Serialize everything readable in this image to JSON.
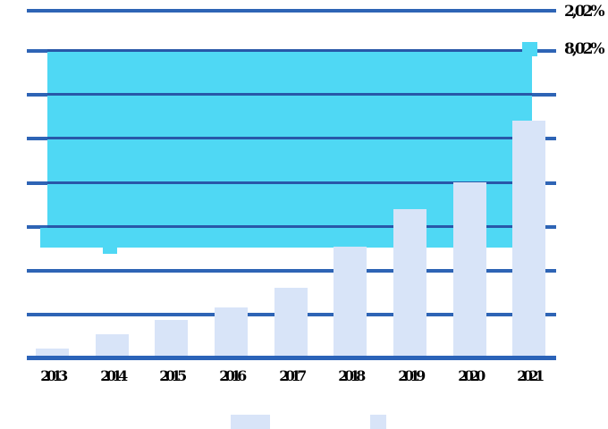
{
  "chart_data": {
    "type": "bar",
    "title": "",
    "xlabel": "",
    "ylabel": "",
    "categories": [
      "2013",
      "2014",
      "2015",
      "2016",
      "2017",
      "2018",
      "2019",
      "2020",
      "2021"
    ],
    "values": [
      0.2,
      0.53,
      0.86,
      1.14,
      1.59,
      2.53,
      3.39,
      4.0,
      5.41
    ],
    "value_units": "gridline steps (no numeric y-axis tick labels are visible on the left)",
    "ylim": [
      0,
      7.96
    ],
    "grid": "horizontal",
    "right_axis_labels": [
      "2,02%",
      "8,02%"
    ],
    "legend_position": "bottom, two unlabeled color swatches cut off by image edge",
    "overlay_area": {
      "description": "large solid cyan band overlaying the plot with selection-like handle tabs",
      "y_top_units": 7.04,
      "y_bottom_units": 2.51,
      "spans_categories": [
        "2013",
        "2021"
      ]
    }
  },
  "labels": {
    "x": [
      "2013",
      "2014",
      "2015",
      "2016",
      "2017",
      "2018",
      "2019",
      "2020",
      "2021"
    ],
    "right": [
      "2,02%",
      "8,02%"
    ]
  },
  "icons": {
    "area_handle": "resize-handle-square"
  },
  "colors": {
    "background": "#FFFFFF",
    "gridline": "#2E64B5",
    "axis": "#2B63B8",
    "thin_line_over_area": "#2857A8",
    "area": "#4FD8F4",
    "bar": "#D8E4F8",
    "label_text": "#000000"
  }
}
